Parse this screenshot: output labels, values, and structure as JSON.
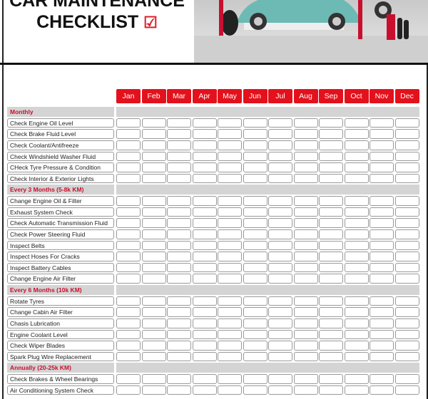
{
  "header": {
    "title_line1": "CAR MAINTENANCE",
    "title_line2": "CHECKLIST",
    "check_icon": "☑"
  },
  "months": [
    "Jan",
    "Feb",
    "Mar",
    "Apr",
    "May",
    "Jun",
    "Jul",
    "Aug",
    "Sep",
    "Oct",
    "Nov",
    "Dec"
  ],
  "colors": {
    "accent": "#e3111c",
    "section_text": "#c8102e",
    "section_band": "#d4d4d4"
  },
  "sections": [
    {
      "title": "Monthly",
      "items": [
        "Check Engine Oil Level",
        "Check Brake Fluid Level",
        "Check Coolant/Antifreeze",
        "Check Windshield Washer Fluid",
        "CHeck Tyre Pressure & Condition",
        "Check Interior & Exterior Lights"
      ]
    },
    {
      "title": "Every 3 Months (5-8k KM)",
      "items": [
        "Change Engine Oil & Filter",
        "Exhaust System Check",
        "Check Automatic Transmission Fluid",
        "Check Power Steering Fluid",
        "Inspect Belts",
        "Inspect Hoses For Cracks",
        "Inspect Battery Cables",
        "Change Engine Air Filter"
      ]
    },
    {
      "title": "Every 6 Months (10k KM)",
      "items": [
        "Rotate Tyres",
        "Change Cabin Air Filter",
        "Chasis Lubrication",
        "Engine Coolant Level",
        "Check Wiper Blades",
        "Spark Plug Wire Replacement"
      ]
    },
    {
      "title": "Annually (20-25k KM)",
      "items": [
        "Check Brakes & Wheel Bearings",
        "Air Conditioning System Check"
      ]
    }
  ]
}
